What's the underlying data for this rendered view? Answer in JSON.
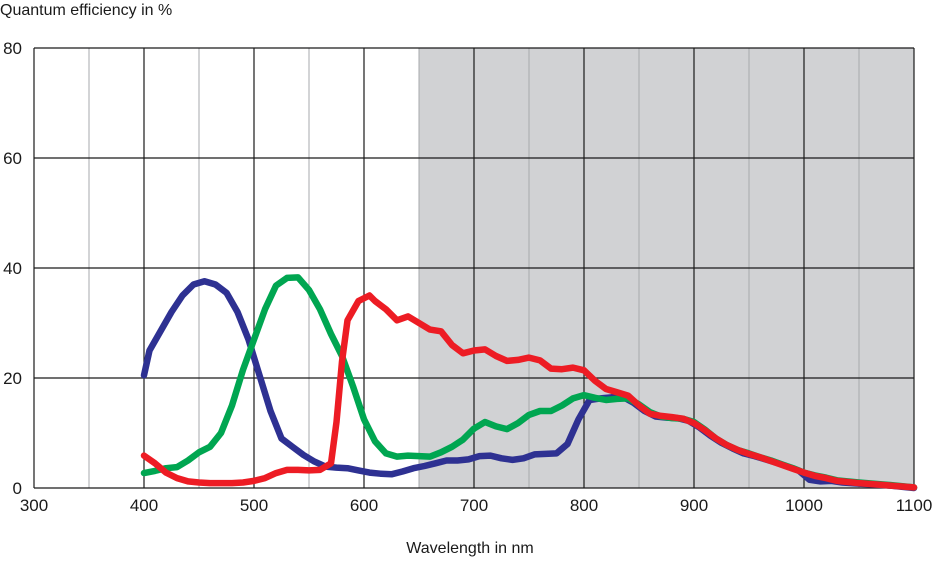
{
  "chart_data": {
    "type": "line",
    "title": "",
    "xlabel": "Wavelength in nm",
    "ylabel": "Quantum efficiency in %",
    "xlim": [
      300,
      1100
    ],
    "ylim": [
      0,
      80
    ],
    "x_ticks": [
      300,
      400,
      500,
      600,
      700,
      800,
      900,
      1000,
      1100
    ],
    "y_ticks": [
      0,
      20,
      40,
      60,
      80
    ],
    "x_minor_step": 50,
    "grid": true,
    "shaded_region": {
      "x_from": 650,
      "x_to": 1100,
      "color": "#d1d2d4"
    },
    "legend": "none",
    "series": [
      {
        "color": "#2e3192",
        "points": [
          [
            400,
            20.5
          ],
          [
            405,
            25
          ],
          [
            415,
            28.5
          ],
          [
            425,
            32
          ],
          [
            435,
            35
          ],
          [
            445,
            37
          ],
          [
            455,
            37.6
          ],
          [
            465,
            37
          ],
          [
            475,
            35.5
          ],
          [
            485,
            32
          ],
          [
            495,
            27
          ],
          [
            505,
            20.5
          ],
          [
            515,
            14
          ],
          [
            525,
            9
          ],
          [
            535,
            7.5
          ],
          [
            545,
            6
          ],
          [
            555,
            4.8
          ],
          [
            565,
            3.9
          ],
          [
            575,
            3.7
          ],
          [
            585,
            3.6
          ],
          [
            595,
            3.2
          ],
          [
            605,
            2.8
          ],
          [
            615,
            2.6
          ],
          [
            625,
            2.5
          ],
          [
            635,
            3
          ],
          [
            645,
            3.6
          ],
          [
            655,
            4
          ],
          [
            665,
            4.5
          ],
          [
            675,
            5
          ],
          [
            685,
            5
          ],
          [
            695,
            5.2
          ],
          [
            705,
            5.8
          ],
          [
            715,
            5.9
          ],
          [
            725,
            5.4
          ],
          [
            735,
            5.1
          ],
          [
            745,
            5.4
          ],
          [
            755,
            6.1
          ],
          [
            765,
            6.2
          ],
          [
            775,
            6.3
          ],
          [
            785,
            8
          ],
          [
            795,
            12.5
          ],
          [
            805,
            16
          ],
          [
            815,
            16.3
          ],
          [
            825,
            16.5
          ],
          [
            835,
            16.6
          ],
          [
            845,
            15.5
          ],
          [
            855,
            14
          ],
          [
            865,
            13
          ],
          [
            875,
            12.8
          ],
          [
            885,
            12.7
          ],
          [
            895,
            12.2
          ],
          [
            905,
            11
          ],
          [
            915,
            9.5
          ],
          [
            925,
            8.2
          ],
          [
            935,
            7.2
          ],
          [
            945,
            6.3
          ],
          [
            955,
            5.8
          ],
          [
            965,
            5.2
          ],
          [
            975,
            4.6
          ],
          [
            985,
            3.9
          ],
          [
            995,
            3.2
          ],
          [
            1005,
            1.5
          ],
          [
            1015,
            1.2
          ],
          [
            1025,
            1.3
          ],
          [
            1035,
            1
          ],
          [
            1050,
            0.8
          ],
          [
            1075,
            0.5
          ],
          [
            1100,
            0
          ]
        ]
      },
      {
        "color": "#00a651",
        "points": [
          [
            400,
            2.7
          ],
          [
            410,
            3.1
          ],
          [
            420,
            3.6
          ],
          [
            430,
            3.8
          ],
          [
            440,
            5
          ],
          [
            450,
            6.5
          ],
          [
            460,
            7.5
          ],
          [
            470,
            10
          ],
          [
            480,
            15
          ],
          [
            490,
            21.5
          ],
          [
            500,
            27
          ],
          [
            510,
            32.5
          ],
          [
            520,
            36.8
          ],
          [
            530,
            38.2
          ],
          [
            540,
            38.3
          ],
          [
            550,
            36
          ],
          [
            560,
            32.5
          ],
          [
            570,
            28
          ],
          [
            580,
            24
          ],
          [
            590,
            18.5
          ],
          [
            600,
            12.5
          ],
          [
            610,
            8.5
          ],
          [
            620,
            6.3
          ],
          [
            630,
            5.7
          ],
          [
            640,
            5.9
          ],
          [
            650,
            5.8
          ],
          [
            660,
            5.7
          ],
          [
            670,
            6.5
          ],
          [
            680,
            7.5
          ],
          [
            690,
            8.8
          ],
          [
            700,
            10.8
          ],
          [
            710,
            12
          ],
          [
            720,
            11.2
          ],
          [
            730,
            10.7
          ],
          [
            740,
            11.8
          ],
          [
            750,
            13.3
          ],
          [
            760,
            14
          ],
          [
            770,
            14
          ],
          [
            780,
            15
          ],
          [
            790,
            16.3
          ],
          [
            800,
            16.9
          ],
          [
            810,
            16.4
          ],
          [
            820,
            16
          ],
          [
            830,
            16.2
          ],
          [
            840,
            16.3
          ],
          [
            850,
            15.2
          ],
          [
            860,
            13.8
          ],
          [
            870,
            13
          ],
          [
            880,
            12.7
          ],
          [
            890,
            12.6
          ],
          [
            900,
            12
          ],
          [
            910,
            10.6
          ],
          [
            920,
            9
          ],
          [
            930,
            7.8
          ],
          [
            940,
            6.9
          ],
          [
            950,
            6.3
          ],
          [
            960,
            5.6
          ],
          [
            970,
            5
          ],
          [
            980,
            4.3
          ],
          [
            990,
            3.6
          ],
          [
            1000,
            2.8
          ],
          [
            1010,
            2.3
          ],
          [
            1020,
            1.9
          ],
          [
            1030,
            1.4
          ],
          [
            1050,
            1
          ],
          [
            1075,
            0.6
          ],
          [
            1100,
            0.1
          ]
        ]
      },
      {
        "color": "#ed1c24",
        "points": [
          [
            400,
            5.9
          ],
          [
            410,
            4.5
          ],
          [
            420,
            2.8
          ],
          [
            430,
            1.8
          ],
          [
            440,
            1.2
          ],
          [
            450,
            1
          ],
          [
            460,
            0.9
          ],
          [
            470,
            0.9
          ],
          [
            480,
            0.9
          ],
          [
            490,
            1
          ],
          [
            500,
            1.3
          ],
          [
            510,
            1.8
          ],
          [
            520,
            2.7
          ],
          [
            530,
            3.3
          ],
          [
            540,
            3.3
          ],
          [
            550,
            3.2
          ],
          [
            560,
            3.3
          ],
          [
            570,
            4.5
          ],
          [
            575,
            12
          ],
          [
            580,
            23
          ],
          [
            585,
            30.5
          ],
          [
            595,
            34
          ],
          [
            605,
            35
          ],
          [
            610,
            34
          ],
          [
            620,
            32.5
          ],
          [
            630,
            30.5
          ],
          [
            640,
            31.2
          ],
          [
            650,
            30
          ],
          [
            660,
            28.8
          ],
          [
            670,
            28.5
          ],
          [
            680,
            26
          ],
          [
            690,
            24.5
          ],
          [
            700,
            25
          ],
          [
            710,
            25.2
          ],
          [
            720,
            24
          ],
          [
            730,
            23.1
          ],
          [
            740,
            23.3
          ],
          [
            750,
            23.7
          ],
          [
            760,
            23.2
          ],
          [
            770,
            21.7
          ],
          [
            780,
            21.6
          ],
          [
            790,
            21.9
          ],
          [
            800,
            21.4
          ],
          [
            810,
            19.5
          ],
          [
            820,
            18
          ],
          [
            830,
            17.4
          ],
          [
            840,
            16.8
          ],
          [
            850,
            15
          ],
          [
            860,
            13.5
          ],
          [
            870,
            13.1
          ],
          [
            880,
            12.9
          ],
          [
            890,
            12.6
          ],
          [
            900,
            11.8
          ],
          [
            910,
            10.5
          ],
          [
            920,
            9
          ],
          [
            930,
            7.8
          ],
          [
            940,
            6.9
          ],
          [
            950,
            6.2
          ],
          [
            960,
            5.6
          ],
          [
            970,
            4.9
          ],
          [
            980,
            4.2
          ],
          [
            990,
            3.5
          ],
          [
            1000,
            2.8
          ],
          [
            1010,
            2.2
          ],
          [
            1020,
            1.8
          ],
          [
            1030,
            1.3
          ],
          [
            1050,
            0.9
          ],
          [
            1075,
            0.5
          ],
          [
            1100,
            0.1
          ]
        ]
      }
    ]
  }
}
